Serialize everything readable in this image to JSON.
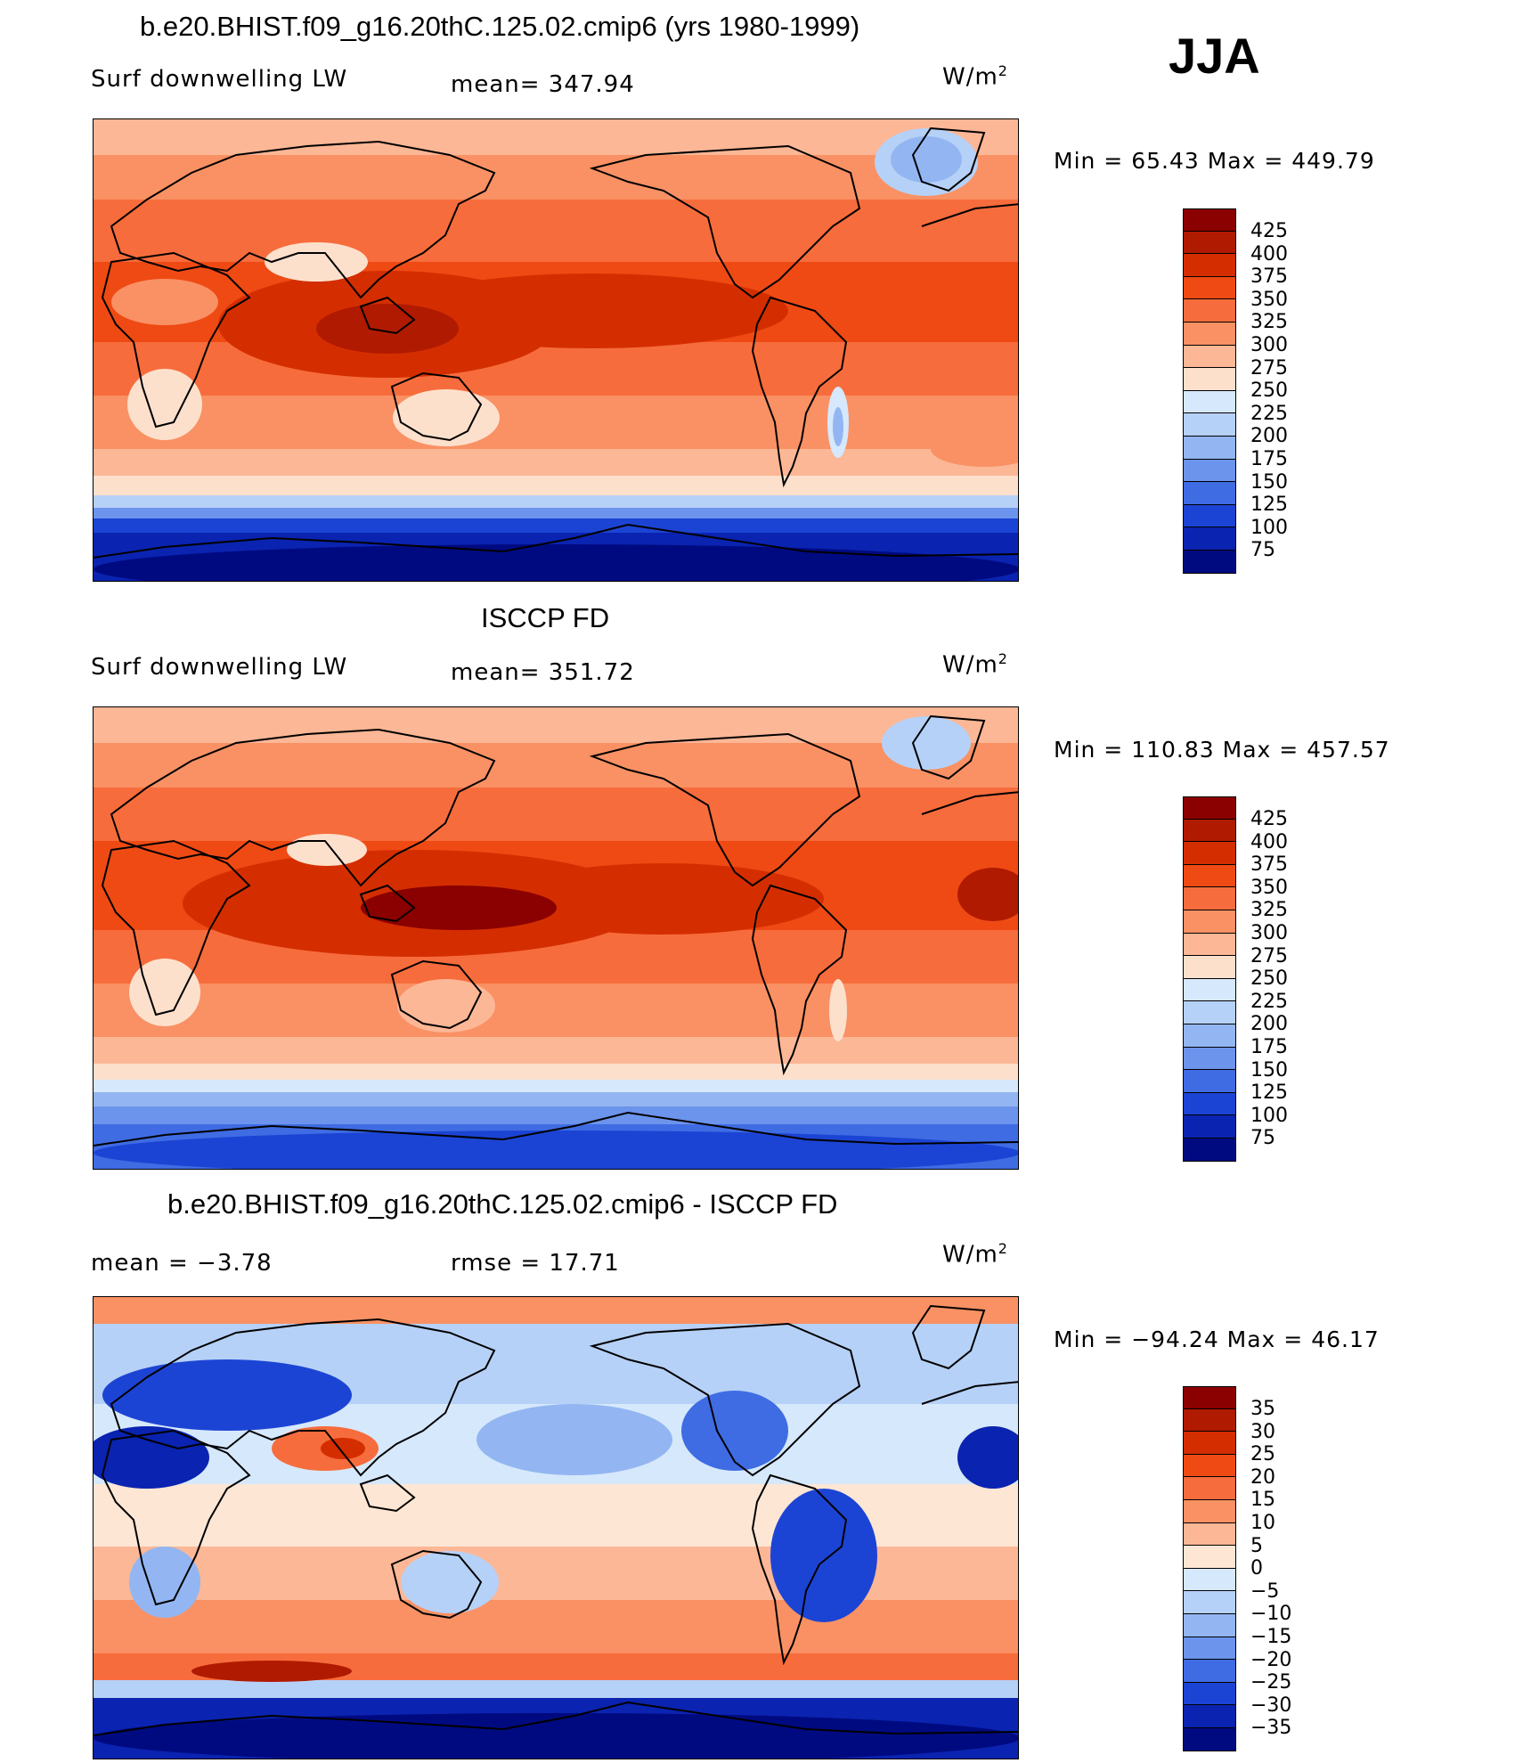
{
  "season": "JJA",
  "panels": [
    {
      "title": "b.e20.BHIST.f09_g16.20thC.125.02.cmip6 (yrs 1980-1999)",
      "variable": "Surf downwelling LW",
      "stat1": "mean= 347.94",
      "units": "W/m",
      "units_exp": "2",
      "minmax": "Min =   65.43 Max = 449.79",
      "colorbar_labels": [
        "425",
        "400",
        "375",
        "350",
        "325",
        "300",
        "275",
        "250",
        "225",
        "200",
        "175",
        "150",
        "125",
        "100",
        "75"
      ],
      "colorbar_colors": [
        "#8b0000",
        "#b01a00",
        "#d42e00",
        "#ef4a14",
        "#f76c3c",
        "#f99164",
        "#fcb796",
        "#fde0cc",
        "#d6e8fb",
        "#b6d1f7",
        "#93b6f2",
        "#6c94ec",
        "#3f6ce3",
        "#1c44d4",
        "#0a23b0",
        "#000a80"
      ]
    },
    {
      "title": "ISCCP FD",
      "variable": "Surf downwelling LW",
      "stat1": "mean= 351.72",
      "units": "W/m",
      "units_exp": "2",
      "minmax": "Min = 110.83 Max = 457.57",
      "colorbar_labels": [
        "425",
        "400",
        "375",
        "350",
        "325",
        "300",
        "275",
        "250",
        "225",
        "200",
        "175",
        "150",
        "125",
        "100",
        "75"
      ],
      "colorbar_colors": [
        "#8b0000",
        "#b01a00",
        "#d42e00",
        "#ef4a14",
        "#f76c3c",
        "#f99164",
        "#fcb796",
        "#fde0cc",
        "#d6e8fb",
        "#b6d1f7",
        "#93b6f2",
        "#6c94ec",
        "#3f6ce3",
        "#1c44d4",
        "#0a23b0",
        "#000a80"
      ]
    },
    {
      "title": "b.e20.BHIST.f09_g16.20thC.125.02.cmip6 - ISCCP FD",
      "stat1": "mean =   −3.78",
      "stat2": "rmse =    17.71",
      "units": "W/m",
      "units_exp": "2",
      "minmax": "Min = −94.24 Max =   46.17",
      "colorbar_labels": [
        "35",
        "30",
        "25",
        "20",
        "15",
        "10",
        "5",
        "0",
        "−5",
        "−10",
        "−15",
        "−20",
        "−25",
        "−30",
        "−35"
      ],
      "colorbar_colors": [
        "#8b0000",
        "#b01a00",
        "#d42e00",
        "#ef4a14",
        "#f76c3c",
        "#f99164",
        "#fcb796",
        "#fde6d4",
        "#d6e8fb",
        "#b6d1f7",
        "#93b6f2",
        "#6c94ec",
        "#3f6ce3",
        "#1c44d4",
        "#0a23b0",
        "#000a80"
      ]
    }
  ]
}
